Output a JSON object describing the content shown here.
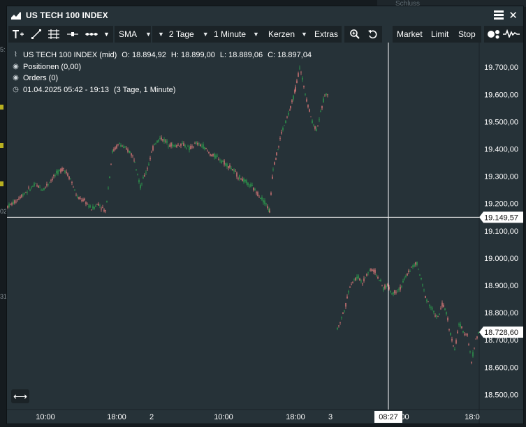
{
  "window": {
    "title": "US TECH 100 INDEX",
    "background_tab": "Schluss"
  },
  "toolbar": {
    "sma_label": "SMA",
    "period_label": "2 Tage",
    "interval_label": "1 Minute",
    "style_label": "Kerzen",
    "extras_label": "Extras",
    "market_label": "Market",
    "limit_label": "Limit",
    "stop_label": "Stop"
  },
  "legend": {
    "instrument": "US TECH 100 INDEX (mid)",
    "open": "O: 18.894,92",
    "high": "H: 18.899,00",
    "low": "L: 18.889,06",
    "close": "C: 18.897,04",
    "positions": "Positionen (0,00)",
    "orders": "Orders (0)",
    "range": "01.04.2025 05:42 - 19:13",
    "range_note": "(3 Tage, 1 Minute)"
  },
  "left_edge_labels": [
    "5:",
    "02",
    "31"
  ],
  "crosshair": {
    "price_label": "19.149,57",
    "time_label": "08:27"
  },
  "last_price_label": "18.728,60",
  "colors": {
    "window_bg": "#263238",
    "up": "#2e9e4e",
    "down": "#e07a7a",
    "crosshair": "#ffffff",
    "highlight_mark": "#b8b020"
  },
  "chart_data": {
    "type": "candlestick",
    "title": "US TECH 100 INDEX",
    "y_axis": {
      "ylim": [
        18460,
        19790
      ],
      "ticks": [
        "19.700,00",
        "19.600,00",
        "19.500,00",
        "19.400,00",
        "19.300,00",
        "19.200,00",
        "19.100,00",
        "19.000,00",
        "18.900,00",
        "18.800,00",
        "18.700,00",
        "18.600,00",
        "18.500,00"
      ],
      "position": "right"
    },
    "x_axis": {
      "ticks": [
        "10:00",
        "18:00",
        "2",
        "10:00",
        "18:00",
        "3",
        ":00",
        "18:0"
      ]
    },
    "series": [
      {
        "session": "1",
        "x": [
          0,
          10,
          20,
          30,
          40,
          50,
          60,
          70,
          80,
          90,
          100,
          110,
          120,
          130,
          140,
          150,
          160,
          168,
          175,
          182,
          190,
          200,
          210,
          220,
          230,
          240,
          250,
          260,
          270,
          280,
          290,
          300,
          310,
          320,
          330,
          340,
          350,
          360,
          370,
          375,
          380,
          385,
          388,
          392,
          398,
          405,
          412,
          418,
          424,
          430,
          436,
          442,
          448,
          454,
          460
        ],
        "close": [
          19190,
          19205,
          19230,
          19250,
          19270,
          19250,
          19280,
          19310,
          19330,
          19290,
          19220,
          19210,
          19180,
          19200,
          19170,
          19390,
          19420,
          19400,
          19390,
          19360,
          19260,
          19330,
          19420,
          19440,
          19420,
          19410,
          19420,
          19400,
          19420,
          19410,
          19380,
          19370,
          19350,
          19330,
          19300,
          19280,
          19260,
          19230,
          19200,
          19170,
          19330,
          19380,
          19410,
          19460,
          19500,
          19550,
          19620,
          19700,
          19630,
          19560,
          19500,
          19470,
          19530,
          19600,
          19600
        ]
      },
      {
        "session": "2",
        "x": [
          472,
          478,
          484,
          490,
          496,
          502,
          508,
          514,
          520,
          526,
          532,
          538,
          544,
          550,
          556,
          562,
          568,
          574,
          580,
          586,
          592,
          598,
          604,
          610,
          616,
          622,
          628,
          634,
          640,
          646,
          652,
          658,
          664,
          670,
          676
        ],
        "close": [
          18740,
          18780,
          18830,
          18900,
          18920,
          18930,
          18910,
          18940,
          18960,
          18950,
          18920,
          18890,
          18900,
          18870,
          18880,
          18890,
          18920,
          18950,
          18970,
          18980,
          18920,
          18860,
          18830,
          18800,
          18780,
          18830,
          18800,
          18720,
          18660,
          18760,
          18730,
          18720,
          18620,
          18700,
          18740
        ]
      }
    ]
  }
}
